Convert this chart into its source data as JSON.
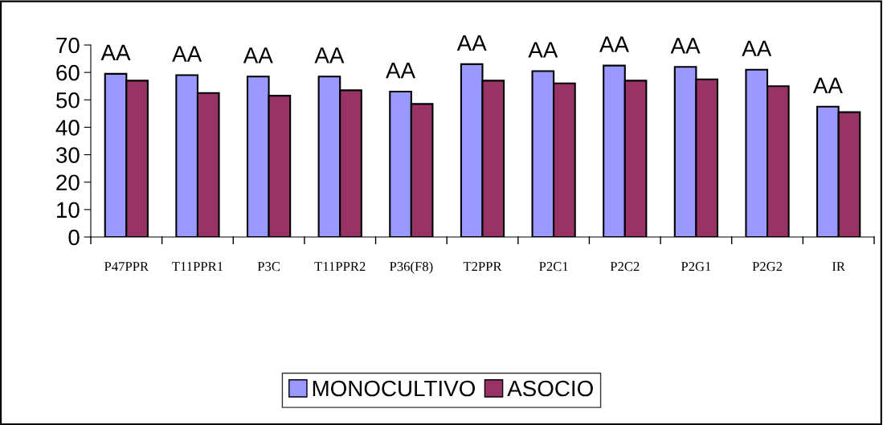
{
  "chart_data": {
    "type": "bar",
    "categories": [
      "P47PPR",
      "T11PPR1",
      "P3C",
      "T11PPR2",
      "P36(F8)",
      "T2PPR",
      "P2C1",
      "P2C2",
      "P2G1",
      "P2G2",
      "IR"
    ],
    "series": [
      {
        "name": "MONOCULTIVO",
        "color": "#9999ff",
        "values": [
          59.5,
          59,
          58.5,
          58.5,
          53,
          63,
          60.5,
          62.5,
          62,
          61,
          47.5
        ]
      },
      {
        "name": "ASOCIO",
        "color": "#993366",
        "values": [
          57,
          52.5,
          51.5,
          53.5,
          48.5,
          57,
          56,
          57,
          57.5,
          55,
          45.5
        ]
      }
    ],
    "ylim": [
      0,
      70
    ],
    "yticks": [
      0,
      10,
      20,
      30,
      40,
      50,
      60,
      70
    ],
    "grid": false,
    "legend": "bottom",
    "annotations": [
      "AA",
      "AA",
      "AA",
      "AA",
      "AA",
      "AA",
      "AA",
      "AA",
      "AA",
      "AA",
      "AA"
    ]
  }
}
